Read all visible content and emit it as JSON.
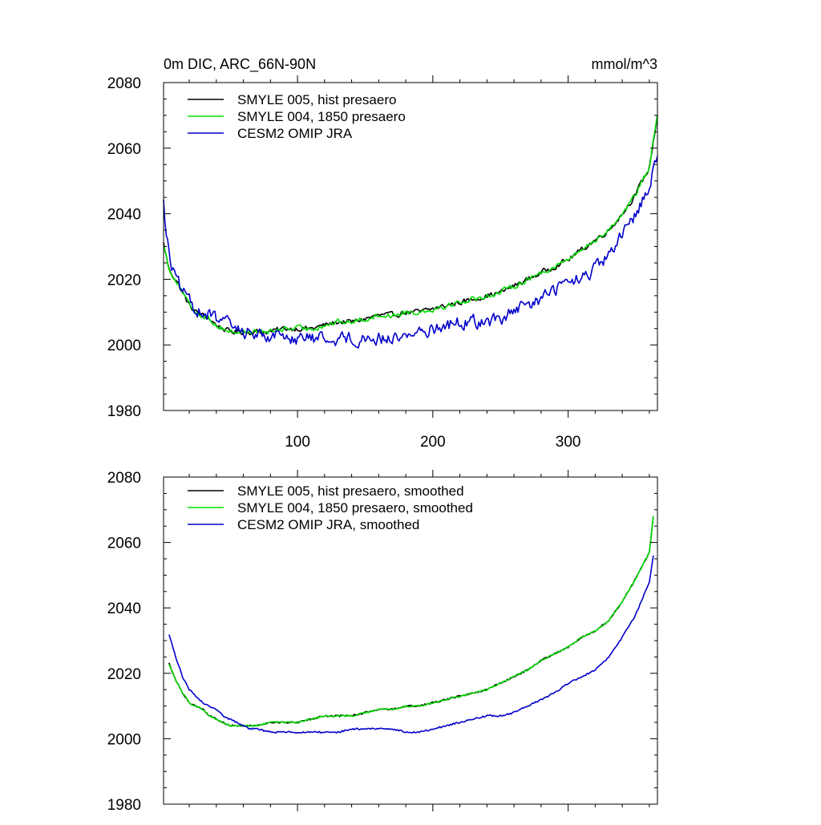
{
  "colors": {
    "smyle005": "#000000",
    "smyle004": "#00dd00",
    "omip": "#0000cc",
    "axis": "#000000",
    "background": "#ffffff"
  },
  "chart_data": [
    {
      "type": "line",
      "title": "0m DIC, ARC_66N-90N",
      "units": "mmol/m^3",
      "xlabel": "",
      "ylabel": "",
      "xlim": [
        1,
        366
      ],
      "ylim": [
        1980,
        2080
      ],
      "x_ticks": [
        100,
        200,
        300
      ],
      "x_tick_labels": [
        "100",
        "200",
        "300"
      ],
      "y_ticks": [
        1980,
        2000,
        2020,
        2040,
        2060,
        2080
      ],
      "y_tick_labels": [
        "1980",
        "2000",
        "2020",
        "2040",
        "2060",
        "2080"
      ],
      "noise": true,
      "legend_location": "top-left",
      "series": [
        {
          "name": "SMYLE 005, hist presaero",
          "color": "#000000",
          "x": [
            1,
            5,
            10,
            15,
            20,
            25,
            30,
            35,
            40,
            45,
            50,
            55,
            60,
            65,
            70,
            80,
            90,
            100,
            110,
            120,
            130,
            140,
            150,
            160,
            170,
            180,
            190,
            200,
            210,
            220,
            230,
            240,
            250,
            260,
            270,
            280,
            290,
            300,
            310,
            320,
            330,
            340,
            350,
            360,
            366
          ],
          "values": [
            2031,
            2023,
            2020,
            2016,
            2012,
            2010,
            2009,
            2008,
            2006,
            2005,
            2004,
            2004,
            2004,
            2004,
            2004,
            2004,
            2005,
            2005,
            2005,
            2006,
            2007,
            2007,
            2008,
            2009,
            2009,
            2010,
            2010,
            2011,
            2012,
            2013,
            2014,
            2015,
            2016,
            2018,
            2020,
            2022,
            2024,
            2026,
            2029,
            2032,
            2035,
            2040,
            2046,
            2054,
            2070
          ]
        },
        {
          "name": "SMYLE 004, 1850 presaero",
          "color": "#00dd00",
          "x": [
            1,
            5,
            10,
            15,
            20,
            25,
            30,
            35,
            40,
            45,
            50,
            55,
            60,
            65,
            70,
            80,
            90,
            100,
            110,
            120,
            130,
            140,
            150,
            160,
            170,
            180,
            190,
            200,
            210,
            220,
            230,
            240,
            250,
            260,
            270,
            280,
            290,
            300,
            310,
            320,
            330,
            340,
            350,
            360,
            366
          ],
          "values": [
            2031,
            2023,
            2020,
            2016,
            2012,
            2010,
            2009,
            2008,
            2006,
            2005,
            2004,
            2004,
            2004,
            2004,
            2004,
            2004,
            2005,
            2005,
            2005,
            2006,
            2007,
            2007,
            2008,
            2009,
            2009,
            2010,
            2010,
            2011,
            2012,
            2013,
            2014,
            2015,
            2016,
            2018,
            2020,
            2022,
            2024,
            2026,
            2029,
            2032,
            2035,
            2040,
            2046,
            2054,
            2070
          ]
        },
        {
          "name": "CESM2 OMIP JRA",
          "color": "#0000cc",
          "x": [
            1,
            3,
            6,
            10,
            15,
            20,
            25,
            30,
            35,
            40,
            45,
            50,
            55,
            60,
            65,
            70,
            80,
            90,
            100,
            110,
            120,
            130,
            140,
            150,
            160,
            170,
            180,
            190,
            200,
            210,
            220,
            230,
            240,
            250,
            260,
            270,
            280,
            290,
            300,
            310,
            320,
            330,
            340,
            350,
            360,
            366
          ],
          "values": [
            2045,
            2033,
            2026,
            2020,
            2016,
            2013,
            2011,
            2010,
            2009,
            2008,
            2007,
            2006,
            2005,
            2004,
            2004,
            2003,
            2003,
            2003,
            2002,
            2002,
            2002,
            2002,
            2002,
            2002,
            2002,
            2002,
            2003,
            2004,
            2005,
            2006,
            2007,
            2007,
            2007,
            2008,
            2010,
            2012,
            2014,
            2017,
            2019,
            2020,
            2023,
            2027,
            2033,
            2040,
            2049,
            2058
          ]
        }
      ]
    },
    {
      "type": "line",
      "title": "",
      "units": "",
      "xlabel": "",
      "ylabel": "",
      "xlim": [
        1,
        366
      ],
      "ylim": [
        1980,
        2080
      ],
      "x_ticks": [
        100,
        200,
        300
      ],
      "x_tick_labels": [],
      "y_ticks": [
        1980,
        2000,
        2020,
        2040,
        2060,
        2080
      ],
      "y_tick_labels": [
        "1980",
        "2000",
        "2020",
        "2040",
        "2060",
        "2080"
      ],
      "noise": false,
      "legend_location": "top-left",
      "series": [
        {
          "name": "SMYLE 005, hist presaero, smoothed",
          "color": "#000000",
          "x": [
            5,
            10,
            15,
            20,
            25,
            30,
            35,
            40,
            45,
            50,
            55,
            60,
            65,
            70,
            80,
            90,
            100,
            110,
            120,
            130,
            140,
            150,
            160,
            170,
            180,
            190,
            200,
            210,
            220,
            230,
            240,
            250,
            260,
            270,
            280,
            290,
            300,
            310,
            320,
            330,
            340,
            350,
            360,
            363
          ],
          "values": [
            2023,
            2018,
            2014,
            2011,
            2010,
            2009,
            2007,
            2006,
            2005,
            2004,
            2004,
            2004,
            2004,
            2004,
            2005,
            2005,
            2005,
            2006,
            2007,
            2007,
            2007,
            2008,
            2009,
            2009,
            2010,
            2010,
            2011,
            2012,
            2013,
            2014,
            2015,
            2017,
            2019,
            2021,
            2024,
            2026,
            2028,
            2031,
            2033,
            2036,
            2042,
            2049,
            2057,
            2068
          ]
        },
        {
          "name": "SMYLE 004, 1850 presaero, smoothed",
          "color": "#00dd00",
          "x": [
            5,
            10,
            15,
            20,
            25,
            30,
            35,
            40,
            45,
            50,
            55,
            60,
            65,
            70,
            80,
            90,
            100,
            110,
            120,
            130,
            140,
            150,
            160,
            170,
            180,
            190,
            200,
            210,
            220,
            230,
            240,
            250,
            260,
            270,
            280,
            290,
            300,
            310,
            320,
            330,
            340,
            350,
            360,
            363
          ],
          "values": [
            2023,
            2018,
            2014,
            2011,
            2010,
            2009,
            2007,
            2006,
            2005,
            2004,
            2004,
            2004,
            2004,
            2004,
            2005,
            2005,
            2005,
            2006,
            2007,
            2007,
            2007,
            2008,
            2009,
            2009,
            2010,
            2010,
            2011,
            2012,
            2013,
            2014,
            2015,
            2017,
            2019,
            2021,
            2024,
            2026,
            2028,
            2031,
            2033,
            2036,
            2042,
            2049,
            2057,
            2068
          ]
        },
        {
          "name": "CESM2 OMIP JRA, smoothed",
          "color": "#0000cc",
          "x": [
            5,
            10,
            15,
            20,
            25,
            30,
            35,
            40,
            45,
            50,
            55,
            60,
            65,
            70,
            80,
            90,
            100,
            110,
            120,
            130,
            140,
            150,
            160,
            170,
            180,
            190,
            200,
            210,
            220,
            230,
            240,
            250,
            260,
            270,
            280,
            290,
            300,
            310,
            320,
            330,
            340,
            350,
            360,
            363
          ],
          "values": [
            2032,
            2025,
            2019,
            2015,
            2013,
            2011,
            2010,
            2009,
            2007,
            2006,
            2005,
            2004,
            2003,
            2003,
            2002,
            2002,
            2002,
            2002,
            2002,
            2002,
            2003,
            2003,
            2003,
            2003,
            2002,
            2002,
            2003,
            2004,
            2005,
            2006,
            2007,
            2007,
            2008,
            2010,
            2012,
            2014,
            2017,
            2019,
            2021,
            2025,
            2031,
            2038,
            2048,
            2056
          ]
        }
      ]
    }
  ]
}
